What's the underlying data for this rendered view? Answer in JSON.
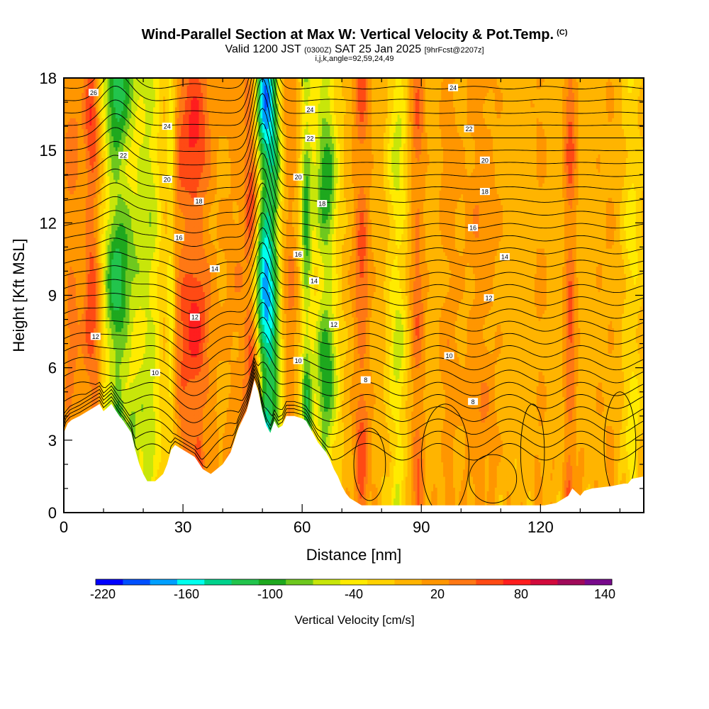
{
  "chart": {
    "title": "Wind-Parallel Section at Max W: Vertical Velocity & Pot.Temp.",
    "copyright": "(C)",
    "valid_prefix": "Valid 1200 JST",
    "valid_utc": "(0300Z)",
    "valid_date": "SAT 25 Jan 2025",
    "forecast": "[9hrFcst@2207z]",
    "subtitle2": "i,j,k,angle=92,59,24,49"
  },
  "chart_data": {
    "type": "heatmap",
    "title": "Wind-Parallel Section at Max W: Vertical Velocity & Pot.Temp.",
    "xlabel": "Distance [nm]",
    "ylabel": "Height [Kft MSL]",
    "xlim": [
      0,
      146
    ],
    "ylim": [
      0,
      18
    ],
    "x_ticks": [
      "0",
      "30",
      "60",
      "90",
      "120"
    ],
    "y_ticks": [
      "0",
      "3",
      "6",
      "9",
      "12",
      "15",
      "18"
    ],
    "colorbar": {
      "title": "Vertical Velocity [cm/s]",
      "min": -220,
      "max": 140,
      "step": 20,
      "tick_labels": [
        "-220",
        "-160",
        "-100",
        "-40",
        "20",
        "80",
        "140"
      ],
      "colors": [
        "#0000ff",
        "#0050ff",
        "#00a0ff",
        "#00ffee",
        "#00d28c",
        "#22c44c",
        "#1ea81e",
        "#6ec81e",
        "#c8e60a",
        "#ffeb00",
        "#ffd200",
        "#ffb400",
        "#ff9600",
        "#ff7814",
        "#ff4a14",
        "#ff1e1e",
        "#d20a3c",
        "#a00a5a",
        "#780a8c"
      ]
    },
    "series": [
      {
        "name": "Vertical Velocity",
        "background_value": 10,
        "features": [
          {
            "x": 2,
            "width": 2.5,
            "value": 50
          },
          {
            "x": 7,
            "width": 1.8,
            "value": 70
          },
          {
            "x": 8,
            "width": 3,
            "value": 30
          },
          {
            "x": 13,
            "width": 3.5,
            "value": -90
          },
          {
            "x": 18,
            "width": 6,
            "value": -45
          },
          {
            "x": 22,
            "width": 3,
            "value": -30
          },
          {
            "x": 28,
            "width": 3,
            "value": 40
          },
          {
            "x": 27,
            "width": 1.2,
            "value": -60
          },
          {
            "x": 33,
            "width": 4,
            "value": 85
          },
          {
            "x": 44,
            "width": 4,
            "value": 35
          },
          {
            "x": 47.5,
            "width": 1.8,
            "value": 85
          },
          {
            "x": 50.5,
            "width": 2.6,
            "value": -170
          },
          {
            "x": 53,
            "width": 2,
            "value": -70
          },
          {
            "x": 57,
            "width": 2,
            "value": 45
          },
          {
            "x": 61,
            "width": 1.5,
            "value": -90
          },
          {
            "x": 66,
            "width": 3,
            "value": -100
          },
          {
            "x": 75,
            "width": 2,
            "value": 70
          },
          {
            "x": 84,
            "width": 2.5,
            "value": -50
          },
          {
            "x": 89,
            "width": 1.8,
            "value": 60
          },
          {
            "x": 97,
            "width": 2.5,
            "value": 35
          },
          {
            "x": 105,
            "width": 4,
            "value": 40
          },
          {
            "x": 120,
            "width": 2,
            "value": 25
          },
          {
            "x": 127.5,
            "width": 1.5,
            "value": 70
          },
          {
            "x": 137,
            "width": 3,
            "value": 20
          },
          {
            "x": 143,
            "width": 2.5,
            "value": -30
          }
        ]
      },
      {
        "name": "Pot.Temp.",
        "contour_levels": [
          8,
          10,
          12,
          14,
          16,
          18,
          20,
          22,
          24,
          26
        ],
        "contour_labels": [
          {
            "x": 8,
            "y": 7.3,
            "text": "12"
          },
          {
            "x": 23,
            "y": 5.8,
            "text": "10"
          },
          {
            "x": 33,
            "y": 8.1,
            "text": "12"
          },
          {
            "x": 38,
            "y": 10.1,
            "text": "14"
          },
          {
            "x": 29,
            "y": 11.4,
            "text": "16"
          },
          {
            "x": 34,
            "y": 12.9,
            "text": "18"
          },
          {
            "x": 26,
            "y": 13.8,
            "text": "20"
          },
          {
            "x": 15,
            "y": 14.8,
            "text": "22"
          },
          {
            "x": 26,
            "y": 16,
            "text": "24"
          },
          {
            "x": 7.5,
            "y": 17.4,
            "text": "26"
          },
          {
            "x": 59,
            "y": 6.3,
            "text": "10"
          },
          {
            "x": 68,
            "y": 7.8,
            "text": "12"
          },
          {
            "x": 63,
            "y": 9.6,
            "text": "14"
          },
          {
            "x": 59,
            "y": 10.7,
            "text": "16"
          },
          {
            "x": 65,
            "y": 12.8,
            "text": "18"
          },
          {
            "x": 59,
            "y": 13.9,
            "text": "20"
          },
          {
            "x": 62,
            "y": 15.5,
            "text": "22"
          },
          {
            "x": 62,
            "y": 16.7,
            "text": "24"
          },
          {
            "x": 76,
            "y": 5.5,
            "text": "8"
          },
          {
            "x": 103,
            "y": 4.6,
            "text": "8"
          },
          {
            "x": 97,
            "y": 6.5,
            "text": "10"
          },
          {
            "x": 107,
            "y": 8.9,
            "text": "12"
          },
          {
            "x": 111,
            "y": 10.6,
            "text": "14"
          },
          {
            "x": 103,
            "y": 11.8,
            "text": "16"
          },
          {
            "x": 106,
            "y": 13.3,
            "text": "18"
          },
          {
            "x": 106,
            "y": 14.6,
            "text": "20"
          },
          {
            "x": 102,
            "y": 15.9,
            "text": "22"
          },
          {
            "x": 98,
            "y": 17.6,
            "text": "24"
          }
        ]
      },
      {
        "name": "Terrain",
        "x": [
          0,
          0.5,
          1.5,
          4,
          7,
          9,
          10,
          12,
          14,
          15,
          17,
          18,
          19,
          20,
          21,
          23,
          25,
          26,
          27,
          28,
          30,
          33,
          35,
          37,
          40,
          42,
          44,
          46,
          47,
          48,
          49,
          50,
          51,
          52,
          53,
          54,
          55,
          56,
          58,
          60,
          61,
          62,
          63,
          64,
          65,
          66,
          67,
          68,
          69,
          70,
          71,
          72,
          73,
          74,
          75,
          80,
          90,
          100,
          110,
          115,
          118,
          121,
          124,
          127,
          128,
          130,
          131,
          133,
          138,
          141,
          142,
          143,
          146
        ],
        "y": [
          3.3,
          3.6,
          3.8,
          4.0,
          4.3,
          4.5,
          4.2,
          4.5,
          4.0,
          3.8,
          3.3,
          2.6,
          2.0,
          1.6,
          1.3,
          1.3,
          1.6,
          2.0,
          2.6,
          2.8,
          2.6,
          2.3,
          1.8,
          1.6,
          2.0,
          2.5,
          3.5,
          4.2,
          4.8,
          5.5,
          5.0,
          4.2,
          3.6,
          3.3,
          3.8,
          3.5,
          3.6,
          4.0,
          4.0,
          3.9,
          3.8,
          3.5,
          3.2,
          2.9,
          2.7,
          2.5,
          2.2,
          1.8,
          1.5,
          1.1,
          0.8,
          0.6,
          0.5,
          0.4,
          0.3,
          0.3,
          0.3,
          0.3,
          0.3,
          0.3,
          0.3,
          0.3,
          0.4,
          0.7,
          1.0,
          0.7,
          0.9,
          1.0,
          1.1,
          1.2,
          1.2,
          1.4,
          1.5
        ]
      }
    ]
  }
}
